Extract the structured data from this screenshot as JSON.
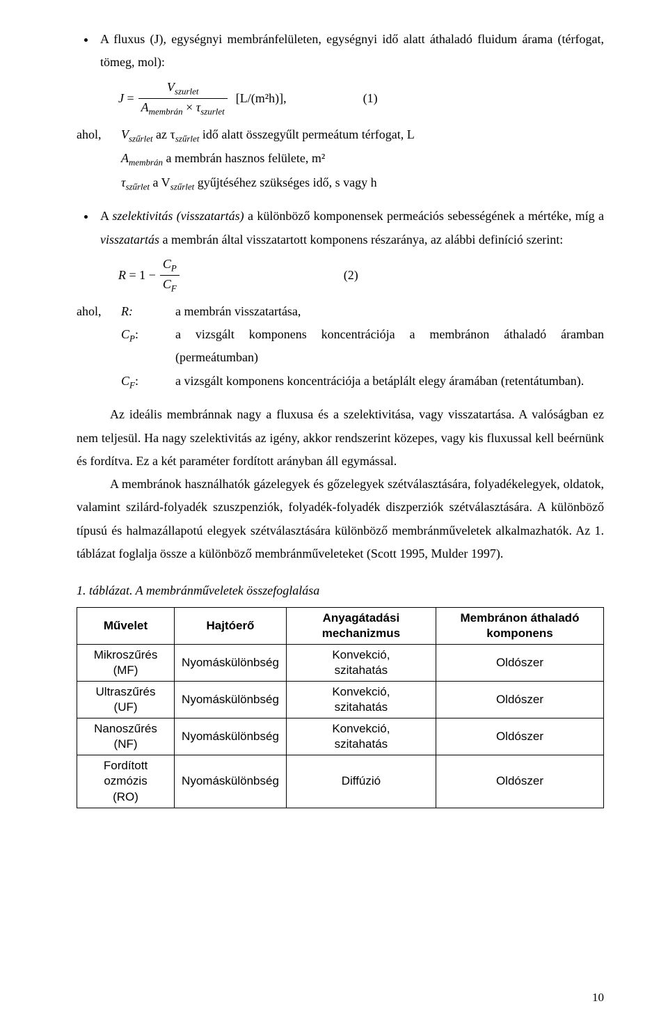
{
  "bullet1": "A fluxus (J), egységnyi membránfelületen, egységnyi idő alatt áthaladó fluidum árama (térfogat, tömeg, mol):",
  "eq1": {
    "J": "J",
    "eq": "=",
    "num": "V",
    "num_sub": "szurlet",
    "den_A": "A",
    "den_A_sub": "membrán",
    "den_tau": "τ",
    "den_tau_sub": "szurlet",
    "unit": "[L/(m²h)],",
    "num_label": "(1)"
  },
  "def1": {
    "ahol": "ahol,",
    "row1_sym": "V",
    "row1_sym_sub": "szűrlet",
    "row1_after_sym": " az τ",
    "row1_after_sub": "szűrlet",
    "row1_txt": " idő alatt összegyűlt permeátum térfogat, L",
    "row2_sym": "A",
    "row2_sym_sub": "membrán",
    "row2_txt": " a membrán hasznos felülete, m²",
    "row3_sym": "τ",
    "row3_sym_sub": "szűrlet",
    "row3_after_sym": " a V",
    "row3_after_sub": "szűrlet",
    "row3_txt": " gyűjtéséhez szükséges idő, s vagy h"
  },
  "bullet2_a": "A ",
  "bullet2_b": "szelektivitás (visszatartás)",
  "bullet2_c": " a különböző komponensek permeációs sebességének a mértéke, míg a ",
  "bullet2_d": "visszatartás",
  "bullet2_e": " a membrán által visszatartott komponens részaránya, az alábbi definíció szerint:",
  "eq2": {
    "R": "R",
    "eq": "= 1 −",
    "num": "C",
    "num_sub": "P",
    "den": "C",
    "den_sub": "F",
    "num_label": "(2)"
  },
  "def2": {
    "ahol": "ahol,",
    "row1_sym": "R:",
    "row1_txt": "a membrán visszatartása,",
    "row2_sym_main": "C",
    "row2_sym_sub": "P",
    "row2_sym_colon": ":",
    "row2_txt": "a vizsgált komponens koncentrációja a membránon áthaladó áramban (permeátumban)",
    "row3_sym_main": "C",
    "row3_sym_sub": "F",
    "row3_sym_colon": ":",
    "row3_txt": "a vizsgált komponens koncentrációja a betáplált elegy áramában (retentátumban)."
  },
  "p1": "Az ideális membránnak nagy a fluxusa és a szelektivitása, vagy visszatartása. A valóságban ez nem teljesül. Ha nagy szelektivitás az igény, akkor rendszerint közepes, vagy kis fluxussal kell beérnünk és fordítva. Ez a két paraméter fordított arányban áll egymással.",
  "p2": "A membránok használhatók gázelegyek és gőzelegyek szétválasztására, folyadékelegyek, oldatok, valamint szilárd-folyadék szuszpenziók, folyadék-folyadék diszperziók szétválasztására. A különböző típusú és halmazállapotú elegyek szétválasztására különböző membránműveletek alkalmazhatók. Az 1. táblázat foglalja össze a különböző membránműveleteket (Scott 1995, Mulder 1997).",
  "tabletitle": "1. táblázat. A membránműveletek összefoglalása",
  "table": {
    "headers": [
      "Művelet",
      "Hajtóerő",
      "Anyagátadási mechanizmus",
      "Membránon áthaladó komponens"
    ],
    "rows": [
      [
        "Mikroszűrés\n(MF)",
        "Nyomáskülönbség",
        "Konvekció,\nszitahatás",
        "Oldószer"
      ],
      [
        "Ultraszűrés\n(UF)",
        "Nyomáskülönbség",
        "Konvekció,\nszitahatás",
        "Oldószer"
      ],
      [
        "Nanoszűrés\n(NF)",
        "Nyomáskülönbség",
        "Konvekció,\nszitahatás",
        "Oldószer"
      ],
      [
        "Fordított ozmózis\n(RO)",
        "Nyomáskülönbség",
        "Diffúzió",
        "Oldószer"
      ]
    ]
  },
  "pagenum": "10"
}
